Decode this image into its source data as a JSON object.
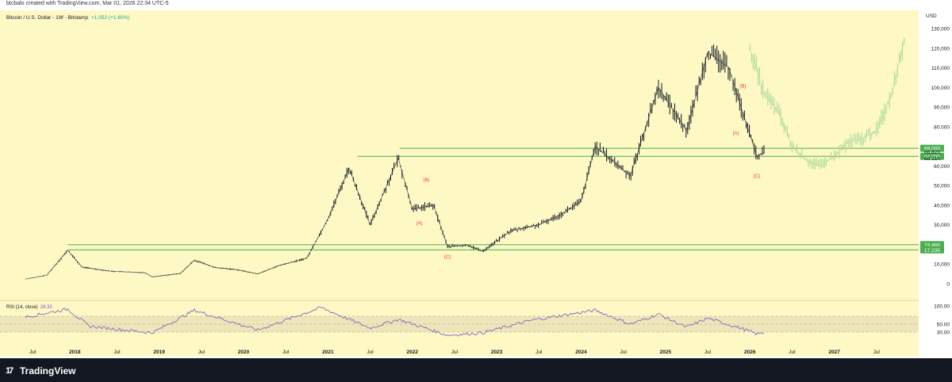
{
  "header": {
    "caption": "btcbalo created with TradingView.com, Mar 01, 2026 22:34 UTC-5",
    "symbol_line": "Bitcoin / U.S. Dollar - 1W - Bitstamp",
    "change": "+1,052 (+1.60%)",
    "change_color": "#26a69a"
  },
  "footer": {
    "brand": "TradingView",
    "logo_icon": "tradingview-logo-icon"
  },
  "chart_data": [
    {
      "type": "line",
      "title": "Bitcoin / U.S. Dollar - 1W - Bitstamp",
      "currency_label": "USD",
      "y_ticks": [
        "130,000",
        "120,000",
        "110,000",
        "100,000",
        "90,000",
        "80,000",
        "70,000",
        "60,000",
        "50,000",
        "40,000",
        "30,000",
        "20,000",
        "10,000",
        "0"
      ],
      "x_ticks": [
        "Jul",
        "2018",
        "Jul",
        "2019",
        "Jul",
        "2020",
        "Jul",
        "2021",
        "Jul",
        "2022",
        "Jul",
        "2023",
        "Jul",
        "2024",
        "Jul",
        "2025",
        "Jul",
        "2026",
        "Jul",
        "2027",
        "Jul"
      ],
      "bold_x_ticks": [
        "2018",
        "2019",
        "2020",
        "2021",
        "2022",
        "2023",
        "2024",
        "2025",
        "2026",
        "2027"
      ],
      "series": [
        {
          "name": "BTCUSD weekly (approx. closes)",
          "color": "#131722",
          "points": [
            [
              "2017-06",
              2400
            ],
            [
              "2017-09",
              4300
            ],
            [
              "2017-12",
              17000
            ],
            [
              "2018-02",
              8500
            ],
            [
              "2018-06",
              6400
            ],
            [
              "2018-11",
              5600
            ],
            [
              "2018-12",
              3500
            ],
            [
              "2019-04",
              5200
            ],
            [
              "2019-06",
              12000
            ],
            [
              "2019-09",
              8200
            ],
            [
              "2019-12",
              7200
            ],
            [
              "2020-03",
              5000
            ],
            [
              "2020-06",
              9200
            ],
            [
              "2020-10",
              13000
            ],
            [
              "2021-01",
              33000
            ],
            [
              "2021-04",
              59000
            ],
            [
              "2021-07",
              30000
            ],
            [
              "2021-09",
              47000
            ],
            [
              "2021-11",
              64000
            ],
            [
              "2022-01",
              38000
            ],
            [
              "2022-04",
              40000
            ],
            [
              "2022-06",
              19000
            ],
            [
              "2022-09",
              19500
            ],
            [
              "2022-11",
              16500
            ],
            [
              "2023-03",
              27000
            ],
            [
              "2023-07",
              30000
            ],
            [
              "2023-10",
              35000
            ],
            [
              "2024-01",
              42000
            ],
            [
              "2024-03",
              70000
            ],
            [
              "2024-08",
              55000
            ],
            [
              "2024-12",
              100000
            ],
            [
              "2025-04",
              78000
            ],
            [
              "2025-07",
              118000
            ],
            [
              "2025-10",
              110000
            ],
            [
              "2025-12",
              87000
            ],
            [
              "2026-02",
              65000
            ],
            [
              "2026-03",
              66823
            ]
          ]
        },
        {
          "name": "Projection (ghost path)",
          "color": "#a8d89a",
          "points": [
            [
              "2026-01",
              120000
            ],
            [
              "2026-03",
              97000
            ],
            [
              "2026-05",
              88000
            ],
            [
              "2026-07",
              70000
            ],
            [
              "2026-09",
              63000
            ],
            [
              "2026-11",
              60000
            ],
            [
              "2027-01",
              65000
            ],
            [
              "2027-03",
              72000
            ],
            [
              "2027-05",
              74000
            ],
            [
              "2027-07",
              78000
            ],
            [
              "2027-09",
              95000
            ],
            [
              "2027-11",
              125000
            ]
          ]
        }
      ],
      "horizontal_levels": [
        {
          "value": 69000,
          "label": "69,000",
          "color": "#4caf50"
        },
        {
          "value": 64895,
          "label": "64,895",
          "color": "#4caf50"
        },
        {
          "value": 19866,
          "label": "19,866",
          "color": "#4caf50"
        },
        {
          "value": 17235,
          "label": "17,235",
          "color": "#4caf50"
        }
      ],
      "price_tags": [
        {
          "label": "66,823",
          "value": 66823
        },
        {
          "label": "6d 21h",
          "value": 66823
        }
      ],
      "annotations": [
        {
          "label": "(B)",
          "date": "2022-03",
          "value": 52000,
          "color": "#f23645"
        },
        {
          "label": "(A)",
          "date": "2022-02",
          "value": 30000,
          "color": "#f23645"
        },
        {
          "label": "(C)",
          "date": "2022-06",
          "value": 13000,
          "color": "#f23645"
        },
        {
          "label": "(B)",
          "date": "2025-12",
          "value": 100000,
          "color": "#f23645"
        },
        {
          "label": "(A)",
          "date": "2025-11",
          "value": 76000,
          "color": "#f23645"
        },
        {
          "label": "(C)",
          "date": "2026-02",
          "value": 54000,
          "color": "#f23645"
        }
      ]
    },
    {
      "type": "line",
      "title": "RSI (14, close)",
      "value_label": "28.33",
      "value_color": "#7e57c2",
      "y_ticks": [
        "100.00",
        "50.00",
        "30.00"
      ],
      "band": [
        30,
        70
      ],
      "series": [
        {
          "name": "RSI",
          "color": "#7e57c2",
          "points": [
            [
              "2017-06",
              68
            ],
            [
              "2017-12",
              88
            ],
            [
              "2018-03",
              45
            ],
            [
              "2018-12",
              28
            ],
            [
              "2019-06",
              85
            ],
            [
              "2020-03",
              35
            ],
            [
              "2020-12",
              92
            ],
            [
              "2021-07",
              40
            ],
            [
              "2021-11",
              62
            ],
            [
              "2022-06",
              22
            ],
            [
              "2022-11",
              28
            ],
            [
              "2023-06",
              60
            ],
            [
              "2024-03",
              85
            ],
            [
              "2024-08",
              50
            ],
            [
              "2024-12",
              75
            ],
            [
              "2025-04",
              42
            ],
            [
              "2025-07",
              65
            ],
            [
              "2025-12",
              38
            ],
            [
              "2026-02",
              25
            ],
            [
              "2026-03",
              28.33
            ]
          ]
        }
      ]
    }
  ]
}
